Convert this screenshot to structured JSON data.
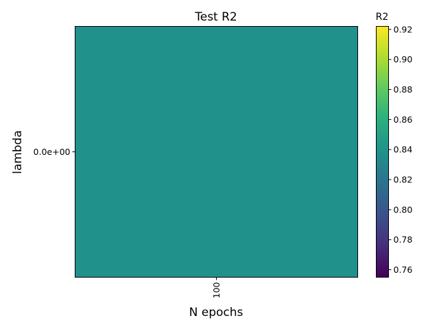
{
  "chart_data": {
    "type": "heatmap",
    "title": "Test R2",
    "xlabel": "N epochs",
    "ylabel": "lambda",
    "x_categories": [
      "100"
    ],
    "y_categories": [
      "0.0e+00"
    ],
    "values": [
      [
        0.838
      ]
    ],
    "colormap": "viridis",
    "colorbar": {
      "label": "R2",
      "range": [
        0.755,
        0.922
      ],
      "ticks": [
        "0.76",
        "0.78",
        "0.80",
        "0.82",
        "0.84",
        "0.86",
        "0.88",
        "0.90",
        "0.92"
      ]
    },
    "cell_color": "#21918c"
  }
}
